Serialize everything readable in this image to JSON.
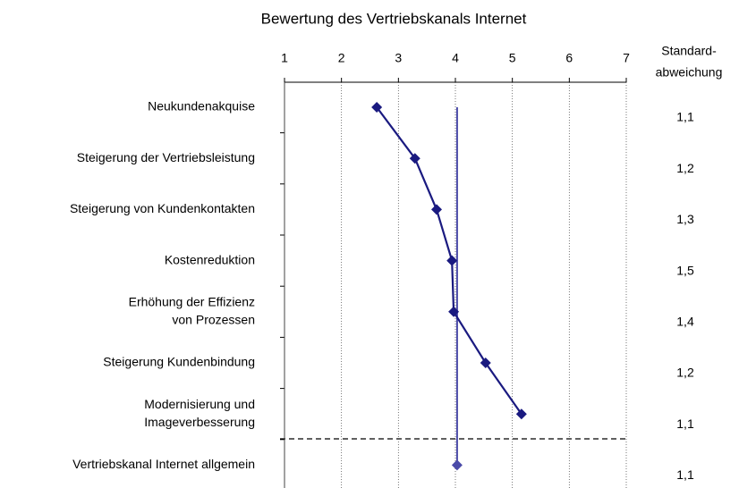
{
  "chart_data": {
    "type": "line",
    "title": "Bewertung des Vertriebskanals Internet",
    "categories": [
      [
        "Neukundenakquise"
      ],
      [
        "Steigerung der Vertriebsleistung"
      ],
      [
        "Steigerung von Kundenkontakten"
      ],
      [
        "Kostenreduktion"
      ],
      [
        "Erhöhung der Effizienz",
        "von Prozessen"
      ],
      [
        "Steigerung Kundenbindung"
      ],
      [
        "Modernisierung und",
        "Imageverbesserung"
      ],
      [
        "Vertriebskanal Internet allgemein"
      ]
    ],
    "series": [
      {
        "color": "#1a1a80",
        "values": [
          2.62,
          3.29,
          3.67,
          3.94,
          3.97,
          4.53,
          5.16,
          null
        ]
      },
      {
        "color": "#4a4aa8",
        "values": [
          null,
          null,
          null,
          null,
          null,
          null,
          null,
          4.03
        ]
      }
    ],
    "std_dev": {
      "name": [
        "Standard-",
        "abweichung"
      ],
      "values": [
        1.1,
        1.2,
        1.3,
        1.5,
        1.4,
        1.2,
        1.1,
        1.1
      ],
      "value_labels": [
        "1,1",
        "1,2",
        "1,3",
        "1,5",
        "1,4",
        "1,2",
        "1,1",
        "1,1"
      ]
    },
    "xlim": [
      1,
      7
    ],
    "xticks": [
      1,
      2,
      3,
      4,
      5,
      6,
      7
    ],
    "grid": true
  }
}
